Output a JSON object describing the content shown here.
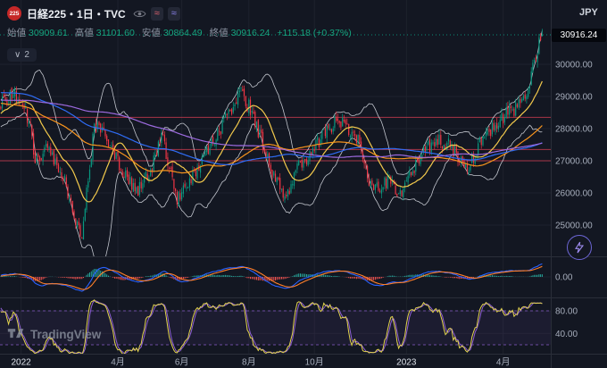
{
  "header": {
    "symbol_badge": "225",
    "title": "日経225・1日・TVC",
    "currency": "JPY",
    "chips": [
      {
        "glyph": "≈",
        "color": "#e0626e"
      },
      {
        "glyph": "≈",
        "color": "#8f86f2"
      }
    ],
    "ohlc": {
      "open_label": "始値",
      "open": "30909.61",
      "high_label": "高値",
      "high": "31101.60",
      "low_label": "安値",
      "low": "30864.49",
      "close_label": "終値",
      "close": "30916.24",
      "change": "+115.18 (+0.37%)"
    },
    "indicators_pill": {
      "chevron": "∨",
      "count": "2"
    }
  },
  "price_scale": {
    "last_price": "30916.24"
  },
  "watermark": {
    "text": "TradingView"
  },
  "chart_data": {
    "type": "candlestick",
    "symbol": "日経225",
    "interval": "1日",
    "exchange": "TVC",
    "currency": "JPY",
    "last_close": 30916.24,
    "last_candle": {
      "open": 30909.61,
      "high": 31101.6,
      "low": 30864.49,
      "close": 30916.24
    },
    "change": {
      "abs": 115.18,
      "pct": 0.37
    },
    "y_ticks": [
      30000,
      29000,
      28000,
      27000,
      26000,
      25000
    ],
    "x_ticks": [
      {
        "label": "2022",
        "day": 13,
        "year": true
      },
      {
        "label": "4月",
        "day": 75
      },
      {
        "label": "6月",
        "day": 116
      },
      {
        "label": "8月",
        "day": 159
      },
      {
        "label": "10月",
        "day": 201
      },
      {
        "label": "2023",
        "day": 260,
        "year": true
      },
      {
        "label": "4月",
        "day": 322
      }
    ],
    "candle_days": 348,
    "display_days": 353,
    "warmup_days": 200,
    "seed": 11,
    "anchors": [
      [
        -200,
        29200
      ],
      [
        -150,
        27800
      ],
      [
        -110,
        30000
      ],
      [
        -80,
        29500
      ],
      [
        -50,
        29400
      ],
      [
        -25,
        27900
      ],
      [
        0,
        28800
      ],
      [
        8,
        29100
      ],
      [
        18,
        28300
      ],
      [
        22,
        26900
      ],
      [
        30,
        27400
      ],
      [
        41,
        26400
      ],
      [
        48,
        25000
      ],
      [
        52,
        24750
      ],
      [
        60,
        28100
      ],
      [
        68,
        27750
      ],
      [
        78,
        26600
      ],
      [
        88,
        26050
      ],
      [
        96,
        26700
      ],
      [
        103,
        27850
      ],
      [
        113,
        25800
      ],
      [
        120,
        26300
      ],
      [
        128,
        26900
      ],
      [
        140,
        27900
      ],
      [
        153,
        29150
      ],
      [
        160,
        28600
      ],
      [
        168,
        27550
      ],
      [
        176,
        26400
      ],
      [
        183,
        25750
      ],
      [
        190,
        26900
      ],
      [
        198,
        27150
      ],
      [
        208,
        27900
      ],
      [
        215,
        28250
      ],
      [
        223,
        28000
      ],
      [
        230,
        27550
      ],
      [
        236,
        26300
      ],
      [
        243,
        26200
      ],
      [
        250,
        26450
      ],
      [
        254,
        25750
      ],
      [
        260,
        26300
      ],
      [
        266,
        26900
      ],
      [
        273,
        27400
      ],
      [
        280,
        27650
      ],
      [
        288,
        27450
      ],
      [
        295,
        27050
      ],
      [
        299,
        26650
      ],
      [
        305,
        27350
      ],
      [
        311,
        27900
      ],
      [
        318,
        28050
      ],
      [
        324,
        28450
      ],
      [
        330,
        28650
      ],
      [
        335,
        29000
      ],
      [
        339,
        29400
      ],
      [
        342,
        30100
      ],
      [
        345,
        30650
      ],
      [
        347,
        30900
      ]
    ],
    "horizontal_lines": [
      {
        "price": 28350,
        "color": "#c23b4e"
      },
      {
        "price": 27350,
        "color": "#c23b4e"
      },
      {
        "price": 27000,
        "color": "#c23b4e"
      }
    ],
    "bollinger": {
      "period": 20,
      "mult": 2,
      "color": "#d5d8e0",
      "width": 0.8
    },
    "overlays": [
      {
        "name": "ma-fast",
        "kind": "sma",
        "period": 20,
        "color": "#f2c94c",
        "width": 1.2
      },
      {
        "name": "ma-mid",
        "kind": "sma",
        "period": 75,
        "color": "#f7941d",
        "width": 1.2
      },
      {
        "name": "ma-slow",
        "kind": "sma",
        "period": 130,
        "color": "#2f6df6",
        "width": 1.2
      },
      {
        "name": "ma-long",
        "kind": "sma",
        "period": 200,
        "color": "#9c6ade",
        "width": 1.2
      }
    ],
    "indicators": [
      {
        "type": "macd",
        "fast": 12,
        "slow": 26,
        "signal": 9,
        "line_color": "#2962ff",
        "signal_color": "#ff7f2a",
        "hist_up": "#26a69a",
        "hist_down": "#ef5350",
        "ticks": [
          0
        ]
      },
      {
        "type": "stochastic",
        "length": 14,
        "smooth": 3,
        "ticks": [
          80,
          40
        ],
        "bands": [
          80,
          20
        ],
        "k_color": "#e3d44e",
        "d_color": "#8d5fd3",
        "band_color": "#8d5fd3",
        "band_fill": "rgba(141,95,211,0.08)"
      }
    ],
    "colors": {
      "up": "#089981",
      "down": "#f23645",
      "grid": "#1e222d",
      "axis_text": "#a6adbb",
      "separator": "#2a2e39",
      "background": "#131722"
    }
  }
}
